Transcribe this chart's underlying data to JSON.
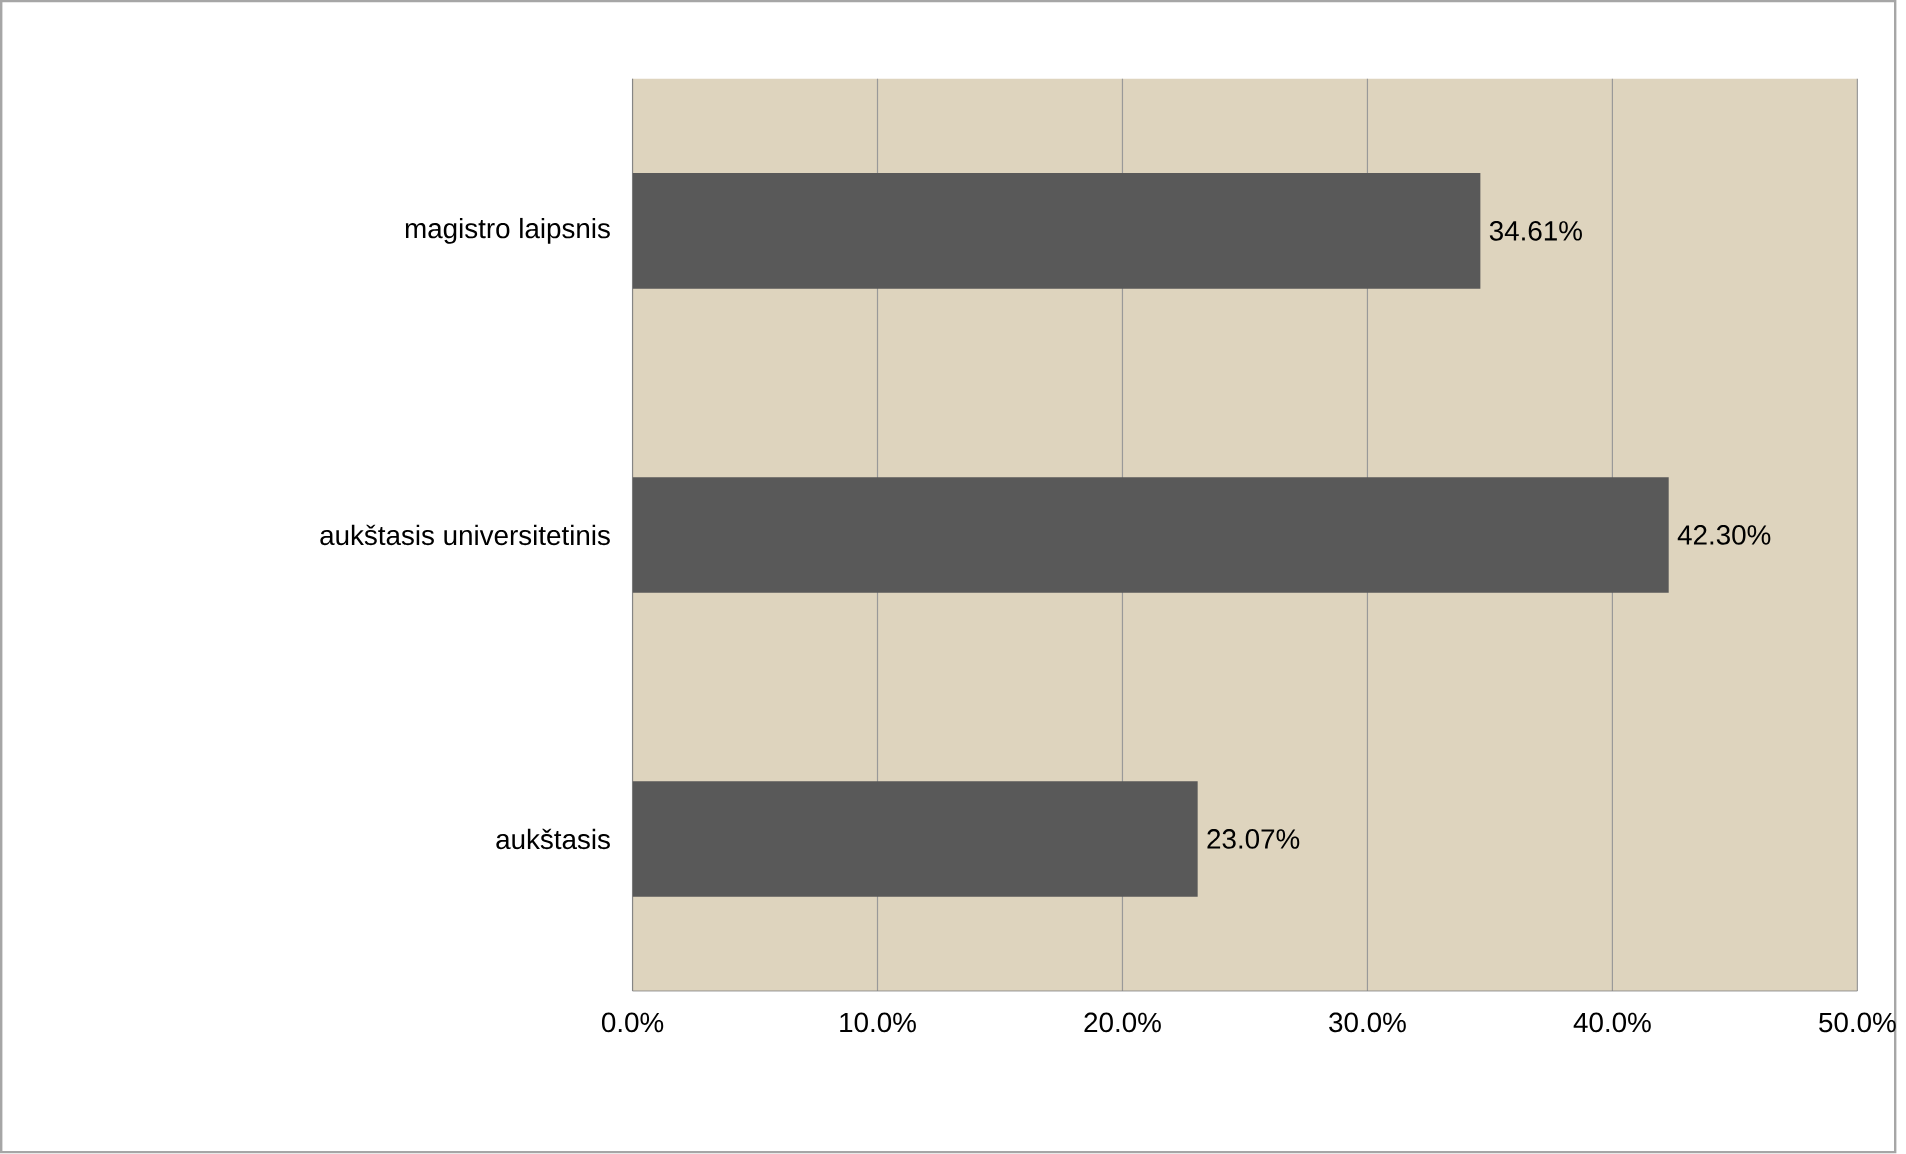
{
  "chart_data": {
    "type": "bar",
    "orientation": "horizontal",
    "categories": [
      "magistro laipsnis",
      "aukštasis universitetinis",
      "aukštasis"
    ],
    "values": [
      34.61,
      42.3,
      23.07
    ],
    "value_labels": [
      "34.61%",
      "42.30%",
      "23.07%"
    ],
    "color": "#595959",
    "xlim": [
      0,
      50
    ],
    "xticks": [
      {
        "value": 0,
        "label": "0.0%"
      },
      {
        "value": 10,
        "label": "10.0%"
      },
      {
        "value": 20,
        "label": "20.0%"
      },
      {
        "value": 30,
        "label": "30.0%"
      },
      {
        "value": 40,
        "label": "40.0%"
      },
      {
        "value": 50,
        "label": "50.0%"
      }
    ],
    "grid": "x"
  }
}
